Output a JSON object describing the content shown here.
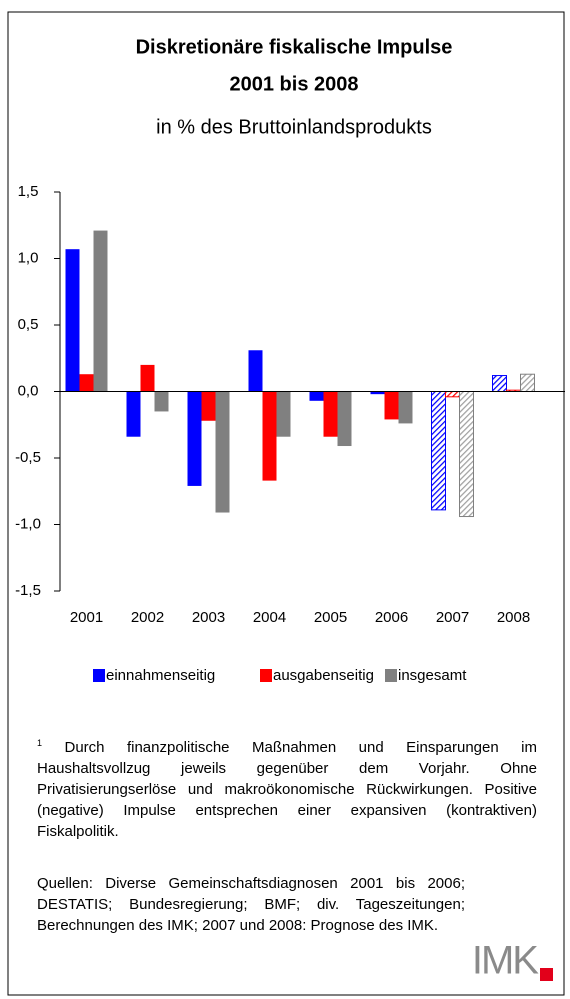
{
  "chart_data": {
    "type": "bar",
    "title": "Diskretionäre fiskalische Impulse",
    "title_line2": "2001 bis 2008",
    "subtitle": "in % des Bruttoinlandsprodukts",
    "categories": [
      "2001",
      "2002",
      "2003",
      "2004",
      "2005",
      "2006",
      "2007",
      "2008"
    ],
    "hatched_categories": [
      "2007",
      "2008"
    ],
    "series": [
      {
        "name": "einnahmenseitig",
        "color": "#0000ff",
        "values": [
          1.07,
          -0.34,
          -0.71,
          0.31,
          -0.07,
          -0.02,
          -0.89,
          0.12
        ]
      },
      {
        "name": "ausgabenseitig",
        "color": "#ff0000",
        "values": [
          0.13,
          0.2,
          -0.22,
          -0.67,
          -0.34,
          -0.21,
          -0.04,
          0.01
        ]
      },
      {
        "name": "insgesamt",
        "color": "#808080",
        "values": [
          1.21,
          -0.15,
          -0.91,
          -0.34,
          -0.41,
          -0.24,
          -0.94,
          0.13
        ]
      }
    ],
    "ylim": [
      -1.5,
      1.5
    ],
    "yticks": [
      {
        "value": 1.5,
        "label": "1,5"
      },
      {
        "value": 1.0,
        "label": "1,0"
      },
      {
        "value": 0.5,
        "label": "0,5"
      },
      {
        "value": 0.0,
        "label": "0,0"
      },
      {
        "value": -0.5,
        "label": "-0,5"
      },
      {
        "value": -1.0,
        "label": "-1,0"
      },
      {
        "value": -1.5,
        "label": "-1,5"
      }
    ],
    "grid": false,
    "legend": "bottom"
  },
  "footnote_marker": "1",
  "footnote": "Durch finanzpolitische Maßnahmen und Einsparungen im Haushaltsvollzug jeweils gegenüber dem Vorjahr. Ohne Privatisierungserlöse und makroökonomische Rückwirkungen. Positive (negative) Impulse entsprechen einer expansiven (kontraktiven) Fiskalpolitik.",
  "sources": "Quellen: Diverse Gemeinschaftsdiagnosen 2001 bis 2006; DESTATIS; Bundesregierung; BMF; div. Tageszeitungen; Berechnungen des IMK; 2007 und 2008: Prognose des IMK.",
  "logo": "IMK"
}
